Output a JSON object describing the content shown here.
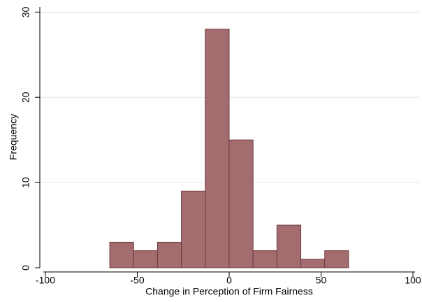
{
  "chart_data": {
    "type": "histogram",
    "x_label": "Change in Perception of Firm Fairness",
    "y_label": "Frequency",
    "bins": [
      -65,
      -52,
      -39,
      -26,
      -13,
      0,
      13,
      26,
      39,
      52,
      65
    ],
    "values": [
      3,
      2,
      3,
      9,
      28,
      15,
      2,
      5,
      1,
      2
    ],
    "color": "#a36c6f",
    "edge_color": "#6e3b3e",
    "xlim": [
      -100,
      100
    ],
    "xticks": [
      -100,
      -50,
      0,
      50,
      100
    ],
    "ylim": [
      0,
      30.6
    ],
    "yticks": [
      0,
      10,
      20,
      30
    ],
    "grid": true
  }
}
